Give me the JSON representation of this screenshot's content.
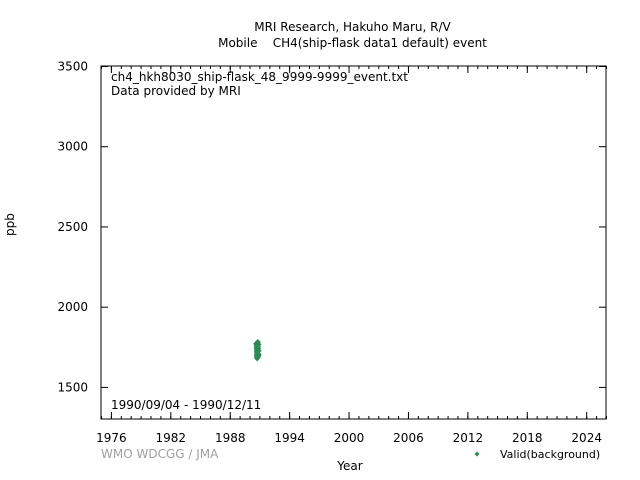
{
  "title_line1": "MRI Research, Hakuho Maru, R/V",
  "title_line2": "Mobile    CH4(ship-flask data1 default) event",
  "file_name": "ch4_hkh8030_ship-flask_48_9999-9999_event.txt",
  "provider": "Data provided by MRI",
  "period": "1990/09/04 - 1990/12/11",
  "credit": "WMO WDCGG / JMA",
  "colors": {
    "series": "#2e8b57",
    "credit": "#a0a0a0"
  },
  "chart_data": {
    "type": "scatter",
    "xlabel": "Year",
    "ylabel": "ppb",
    "xlim": [
      1975,
      2026
    ],
    "ylim": [
      1300,
      3500
    ],
    "x_ticks": [
      1976,
      1982,
      1988,
      1994,
      2000,
      2006,
      2012,
      2018,
      2024
    ],
    "y_ticks": [
      1500,
      2000,
      2500,
      3000,
      3500
    ],
    "grid": false,
    "legend_position": "bottom-right",
    "series": [
      {
        "name": "Valid(background)",
        "marker": "diamond",
        "color": "#2e8b57",
        "points": [
          {
            "x": 1990.68,
            "y": 1770
          },
          {
            "x": 1990.69,
            "y": 1762
          },
          {
            "x": 1990.7,
            "y": 1748
          },
          {
            "x": 1990.71,
            "y": 1735
          },
          {
            "x": 1990.72,
            "y": 1722
          },
          {
            "x": 1990.73,
            "y": 1712
          },
          {
            "x": 1990.74,
            "y": 1700
          },
          {
            "x": 1990.75,
            "y": 1690
          },
          {
            "x": 1990.76,
            "y": 1684
          },
          {
            "x": 1990.77,
            "y": 1678
          },
          {
            "x": 1990.78,
            "y": 1695
          },
          {
            "x": 1990.79,
            "y": 1718
          },
          {
            "x": 1990.8,
            "y": 1742
          },
          {
            "x": 1990.81,
            "y": 1758
          },
          {
            "x": 1990.82,
            "y": 1775
          },
          {
            "x": 1990.83,
            "y": 1780
          },
          {
            "x": 1990.84,
            "y": 1752
          },
          {
            "x": 1990.85,
            "y": 1730
          },
          {
            "x": 1990.86,
            "y": 1708
          },
          {
            "x": 1990.87,
            "y": 1688
          },
          {
            "x": 1990.88,
            "y": 1740
          },
          {
            "x": 1990.9,
            "y": 1765
          },
          {
            "x": 1990.92,
            "y": 1725
          },
          {
            "x": 1990.94,
            "y": 1700
          }
        ]
      }
    ]
  }
}
